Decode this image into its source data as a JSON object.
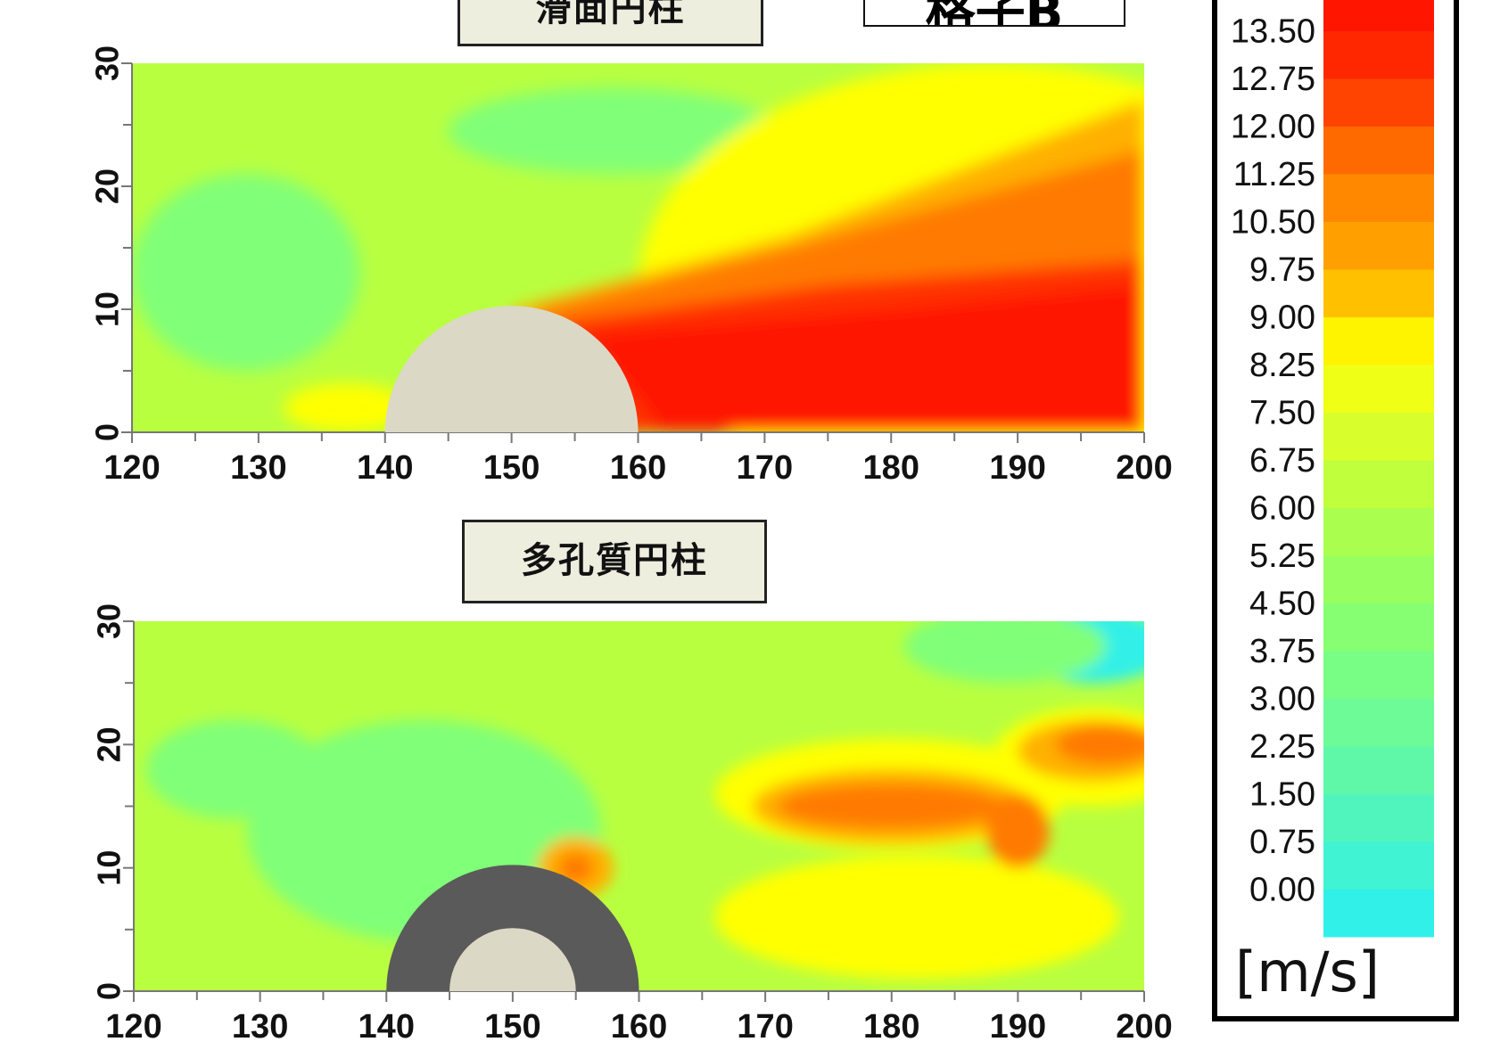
{
  "labels": {
    "grid_label": "格子B",
    "colorbar_unit": "[m/s]"
  },
  "colors": {
    "colormap": [
      "#30f0e8",
      "#80ff78",
      "#b8ff40",
      "#ffff00",
      "#ffb000",
      "#ff7a00",
      "#ff3000",
      "#ff1500"
    ],
    "cylinder_fill": "#dcd8c6",
    "porous_ring": "#5a5a5a"
  },
  "chart_data": [
    {
      "type": "heatmap",
      "title": "滑面円柱",
      "xlabel": "",
      "ylabel": "",
      "xlim": [
        120,
        200
      ],
      "ylim": [
        0,
        30
      ],
      "x_ticks": [
        120,
        130,
        140,
        150,
        160,
        170,
        180,
        190,
        200
      ],
      "y_ticks": [
        0,
        10,
        20,
        30
      ],
      "unit": "m/s",
      "obstacle": {
        "shape": "semicircle",
        "center_x": 150,
        "radius": 10,
        "porous": false
      },
      "description_values": "background ~3.5-5 m/s; jet > 13.5 m/s behind cylinder from x=150 to 200 at y 0-12; shear layer rising to y~30 at x=200"
    },
    {
      "type": "heatmap",
      "title": "多孔質円柱",
      "xlabel": "",
      "ylabel": "",
      "xlim": [
        120,
        200
      ],
      "ylim": [
        0,
        30
      ],
      "x_ticks": [
        120,
        130,
        140,
        150,
        160,
        170,
        180,
        190,
        200
      ],
      "y_ticks": [
        0,
        10,
        20,
        30
      ],
      "unit": "m/s",
      "obstacle": {
        "shape": "semicircle",
        "center_x": 150,
        "radius": 10,
        "inner_radius": 5,
        "porous": true
      },
      "description_values": "background ~3.5-5.5 m/s; streak ~11-13 m/s at y~15 from x=168 to 190, continuing at y~20 to x=200; local peak ~11 at (155,10)"
    },
    {
      "type": "colorbar",
      "levels": [
        "13.50",
        "12.75",
        "12.00",
        "11.25",
        "10.50",
        "9.75",
        "9.00",
        "8.25",
        "7.50",
        "6.75",
        "6.00",
        "5.25",
        "4.50",
        "3.75",
        "3.00",
        "2.25",
        "1.50",
        "0.75",
        "0.00"
      ],
      "min": 0,
      "max": 14.25,
      "step": 0.75,
      "unit": "[m/s]"
    }
  ]
}
